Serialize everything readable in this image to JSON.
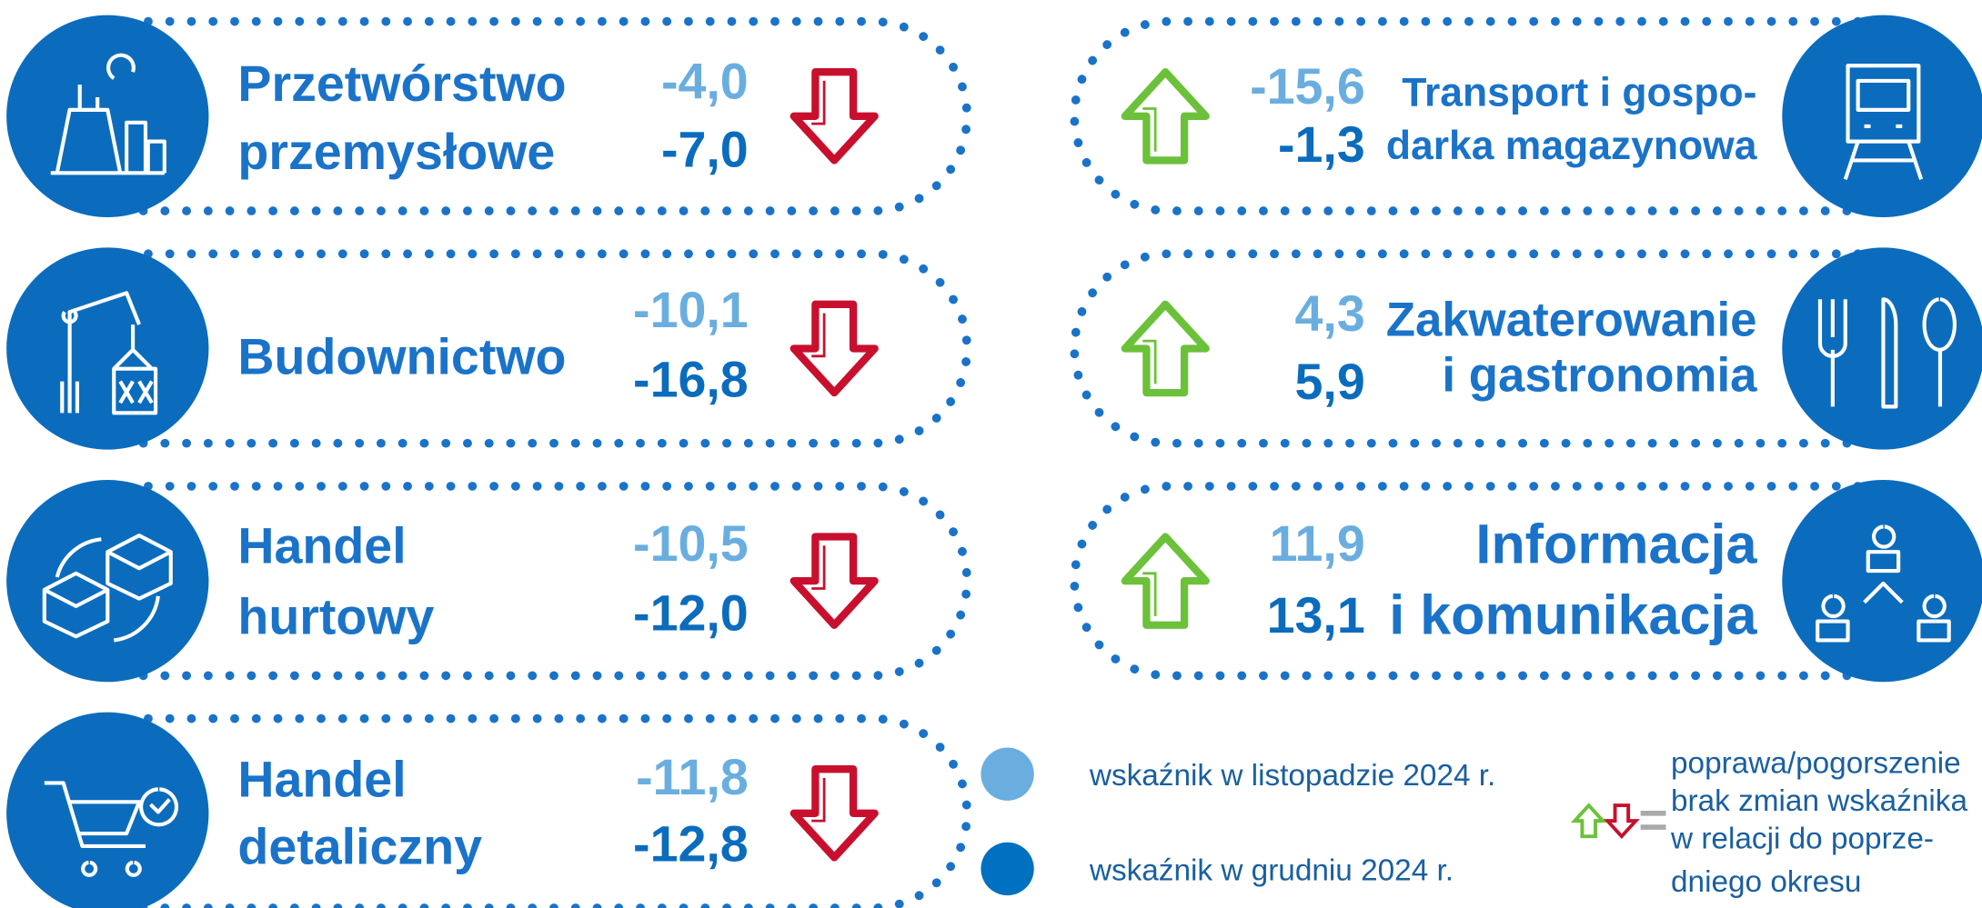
{
  "sectors": [
    {
      "name": [
        "Przetwórstwo",
        "przemysłowe"
      ],
      "nov": "-4,0",
      "dec": "-7,0",
      "trend": "down"
    },
    {
      "name": [
        "Budownictwo"
      ],
      "nov": "-10,1",
      "dec": "-16,8",
      "trend": "down"
    },
    {
      "name": [
        "Handel",
        "hurtowy"
      ],
      "nov": "-10,5",
      "dec": "-12,0",
      "trend": "down"
    },
    {
      "name": [
        "Handel",
        "detaliczny"
      ],
      "nov": "-11,8",
      "dec": "-12,8",
      "trend": "down"
    },
    {
      "name": [
        "Transport i gospo-",
        "darka magazynowa"
      ],
      "nov": "-15,6",
      "dec": "-1,3",
      "trend": "up"
    },
    {
      "name": [
        "Zakwaterowanie",
        "i gastronomia"
      ],
      "nov": "4,3",
      "dec": "5,9",
      "trend": "up"
    },
    {
      "name": [
        "Informacja",
        "i komunikacja"
      ],
      "nov": "11,9",
      "dec": "13,1",
      "trend": "up"
    }
  ],
  "legend": {
    "nov": "wskaźnik w listopadzie 2024 r.",
    "dec": "wskaźnik w grudniu 2024 r.",
    "note": [
      "poprawa/pogorszenie",
      "brak zmian wskaźnika",
      "w relacji do poprze-",
      "dniego okresu"
    ]
  }
}
